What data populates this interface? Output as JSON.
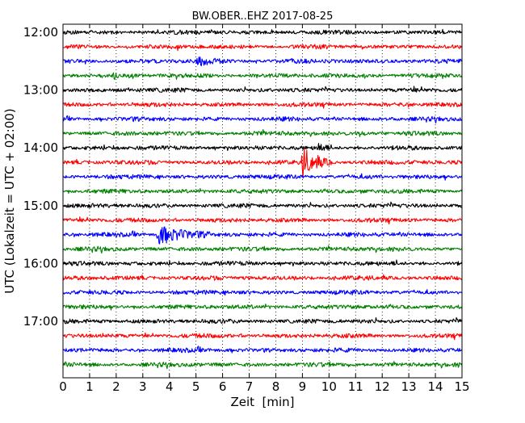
{
  "chart_data": {
    "type": "line",
    "title": "BW.OBER..EHZ 2017-08-25",
    "xlabel": "Zeit  [min]",
    "ylabel": "UTC (Lokalzeit = UTC + 02:00)",
    "xlim": [
      0,
      15
    ],
    "x_ticks": [
      "0",
      "1",
      "2",
      "3",
      "4",
      "5",
      "6",
      "7",
      "8",
      "9",
      "10",
      "11",
      "12",
      "13",
      "14",
      "15"
    ],
    "y_tick_labels": [
      "12:00",
      "13:00",
      "14:00",
      "15:00",
      "16:00",
      "17:00"
    ],
    "grid": "vertical dotted",
    "trace_colors": [
      "#000000",
      "#ff0000",
      "#0000ff",
      "#008000"
    ],
    "traces": [
      {
        "start": "12:00",
        "events": []
      },
      {
        "start": "12:15",
        "events": []
      },
      {
        "start": "12:30",
        "events": [
          {
            "t_min": 5.0,
            "amp": 1.4,
            "dur_min": 1.2
          }
        ]
      },
      {
        "start": "12:45",
        "events": [
          {
            "t_min": 1.9,
            "amp": 1.3,
            "dur_min": 0.3
          }
        ]
      },
      {
        "start": "13:00",
        "events": []
      },
      {
        "start": "13:15",
        "events": []
      },
      {
        "start": "13:30",
        "events": []
      },
      {
        "start": "13:45",
        "events": [
          {
            "t_min": 11.1,
            "amp": 1.8,
            "dur_min": 0.3
          }
        ]
      },
      {
        "start": "14:00",
        "events": [
          {
            "t_min": 9.6,
            "amp": 2.2,
            "dur_min": 0.4
          }
        ]
      },
      {
        "start": "14:15",
        "events": [
          {
            "t_min": 9.0,
            "amp": 5.5,
            "dur_min": 1.1
          }
        ]
      },
      {
        "start": "14:30",
        "events": []
      },
      {
        "start": "14:45",
        "events": []
      },
      {
        "start": "15:00",
        "events": []
      },
      {
        "start": "15:15",
        "events": []
      },
      {
        "start": "15:30",
        "events": [
          {
            "t_min": 3.55,
            "amp": 3.6,
            "dur_min": 2.0
          }
        ]
      },
      {
        "start": "15:45",
        "events": []
      },
      {
        "start": "16:00",
        "events": []
      },
      {
        "start": "16:15",
        "events": []
      },
      {
        "start": "16:30",
        "events": []
      },
      {
        "start": "16:45",
        "events": []
      },
      {
        "start": "17:00",
        "events": []
      },
      {
        "start": "17:15",
        "events": []
      },
      {
        "start": "17:30",
        "events": []
      },
      {
        "start": "17:45",
        "events": []
      }
    ]
  }
}
